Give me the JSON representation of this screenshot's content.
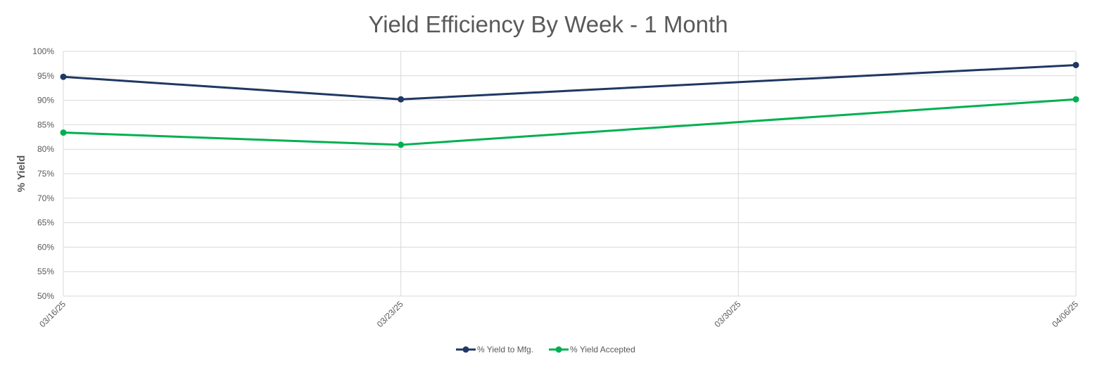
{
  "chart_data": {
    "type": "line",
    "title": "Yield Efficiency By Week - 1 Month",
    "xlabel": "",
    "ylabel": "% Yield",
    "x": [
      "03/16/25",
      "03/23/25",
      "03/30/25",
      "04/06/25"
    ],
    "ylim": [
      50,
      100
    ],
    "ytick_step": 5,
    "y_tick_labels": [
      "50%",
      "55%",
      "60%",
      "65%",
      "70%",
      "75%",
      "80%",
      "85%",
      "90%",
      "95%",
      "100%"
    ],
    "grid": true,
    "legend_position": "bottom",
    "series": [
      {
        "name": "% Yield to Mfg.",
        "color": "#1f3864",
        "values": [
          94.8,
          90.2,
          null,
          97.2
        ]
      },
      {
        "name": "% Yield Accepted",
        "color": "#00b050",
        "values": [
          83.4,
          80.9,
          null,
          90.2
        ]
      }
    ]
  }
}
